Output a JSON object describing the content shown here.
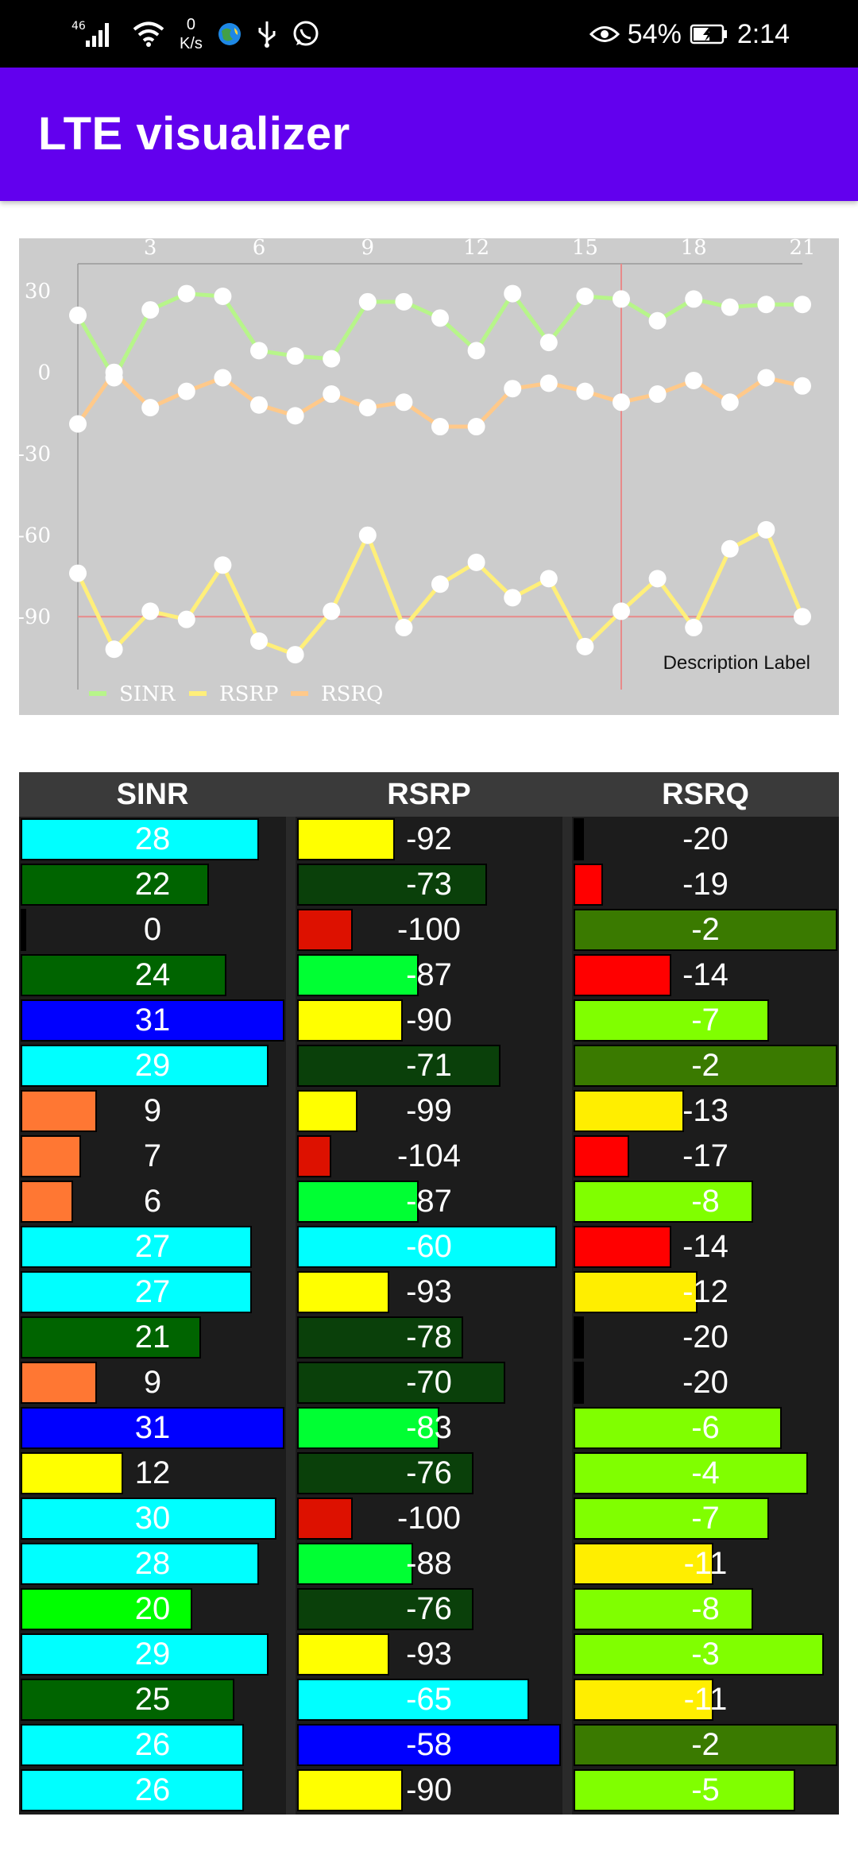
{
  "status_bar": {
    "network_type": "46",
    "net_speed_value": "0",
    "net_speed_unit": "K/s",
    "battery": "54%",
    "time": "2:14",
    "icons": [
      "signal-icon",
      "wifi-icon",
      "app-globe-icon",
      "usb-icon",
      "whatsapp-icon",
      "eye-comfort-icon",
      "battery-charging-icon"
    ]
  },
  "app_bar": {
    "title": "LTE visualizer"
  },
  "chart_data": {
    "type": "line",
    "x": [
      1,
      2,
      3,
      4,
      5,
      6,
      7,
      8,
      9,
      10,
      11,
      12,
      13,
      14,
      15,
      16,
      17,
      18,
      19,
      20,
      21
    ],
    "x_ticks": [
      "3",
      "6",
      "9",
      "12",
      "15",
      "18",
      "21"
    ],
    "y_ticks": [
      "30",
      "0",
      "-30",
      "-60",
      "-90"
    ],
    "ylim": [
      -111,
      40
    ],
    "series": [
      {
        "name": "SINR",
        "color": "#b7f58a",
        "values": [
          21,
          -2,
          23,
          29,
          28,
          8,
          6,
          5,
          26,
          26,
          20,
          8,
          29,
          11,
          28,
          27,
          19,
          27,
          24,
          25,
          25
        ]
      },
      {
        "name": "RSRP",
        "color": "#ffef7a",
        "values": [
          -74,
          -102,
          -88,
          -91,
          -71,
          -99,
          -104,
          -88,
          -60,
          -94,
          -78,
          -70,
          -83,
          -76,
          -101,
          -88,
          -76,
          -94,
          -65,
          -58,
          -90
        ]
      },
      {
        "name": "RSRQ",
        "color": "#ffc98a",
        "values": [
          -19,
          0,
          -13,
          -7,
          -2,
          -12,
          -16,
          -8,
          -13,
          -11,
          -20,
          -20,
          -6,
          -4,
          -7,
          -11,
          -8,
          -3,
          -11,
          -2,
          -5
        ]
      }
    ],
    "reference_lines": {
      "x": 16,
      "y": -90,
      "color": "#e88a8a"
    },
    "description_label": "Description Label",
    "grid": false,
    "legend_position": "bottom-left"
  },
  "table": {
    "headers": [
      "SINR",
      "RSRP",
      "RSRQ"
    ],
    "columns": [
      {
        "name": "sinr",
        "cells": [
          {
            "v": "28",
            "f": 0.905,
            "c": "#00ffff"
          },
          {
            "v": "22",
            "f": 0.715,
            "c": "#006400"
          },
          {
            "v": "0",
            "f": 0.02,
            "c": "#000000"
          },
          {
            "v": "24",
            "f": 0.78,
            "c": "#006400"
          },
          {
            "v": "31",
            "f": 1.0,
            "c": "#0000ff"
          },
          {
            "v": "29",
            "f": 0.94,
            "c": "#00ffff"
          },
          {
            "v": "9",
            "f": 0.29,
            "c": "#ff7733"
          },
          {
            "v": "7",
            "f": 0.23,
            "c": "#ff7733"
          },
          {
            "v": "6",
            "f": 0.2,
            "c": "#ff7733"
          },
          {
            "v": "27",
            "f": 0.875,
            "c": "#00ffff"
          },
          {
            "v": "27",
            "f": 0.875,
            "c": "#00ffff"
          },
          {
            "v": "21",
            "f": 0.685,
            "c": "#006400"
          },
          {
            "v": "9",
            "f": 0.29,
            "c": "#ff7733"
          },
          {
            "v": "31",
            "f": 1.0,
            "c": "#0000ff"
          },
          {
            "v": "12",
            "f": 0.39,
            "c": "#ffff00"
          },
          {
            "v": "30",
            "f": 0.97,
            "c": "#00ffff"
          },
          {
            "v": "28",
            "f": 0.905,
            "c": "#00ffff"
          },
          {
            "v": "20",
            "f": 0.65,
            "c": "#00ff00"
          },
          {
            "v": "29",
            "f": 0.94,
            "c": "#00ffff"
          },
          {
            "v": "25",
            "f": 0.81,
            "c": "#006400"
          },
          {
            "v": "26",
            "f": 0.845,
            "c": "#00ffff"
          },
          {
            "v": "26",
            "f": 0.845,
            "c": "#00ffff"
          }
        ]
      },
      {
        "name": "rsrp",
        "cells": [
          {
            "v": "-92",
            "f": 0.37,
            "c": "#ffff00"
          },
          {
            "v": "-73",
            "f": 0.72,
            "c": "#0a400a"
          },
          {
            "v": "-100",
            "f": 0.21,
            "c": "#dd1100"
          },
          {
            "v": "-87",
            "f": 0.46,
            "c": "#00ff33"
          },
          {
            "v": "-90",
            "f": 0.4,
            "c": "#ffff00"
          },
          {
            "v": "-71",
            "f": 0.77,
            "c": "#0a400a"
          },
          {
            "v": "-99",
            "f": 0.23,
            "c": "#ffff00"
          },
          {
            "v": "-104",
            "f": 0.13,
            "c": "#dd1100"
          },
          {
            "v": "-87",
            "f": 0.46,
            "c": "#00ff33"
          },
          {
            "v": "-60",
            "f": 0.985,
            "c": "#00ffff"
          },
          {
            "v": "-93",
            "f": 0.35,
            "c": "#ffff00"
          },
          {
            "v": "-78",
            "f": 0.63,
            "c": "#0a400a"
          },
          {
            "v": "-70",
            "f": 0.79,
            "c": "#0a400a"
          },
          {
            "v": "-83",
            "f": 0.54,
            "c": "#00ff33"
          },
          {
            "v": "-76",
            "f": 0.67,
            "c": "#0a400a"
          },
          {
            "v": "-100",
            "f": 0.21,
            "c": "#dd1100"
          },
          {
            "v": "-88",
            "f": 0.44,
            "c": "#00ff33"
          },
          {
            "v": "-76",
            "f": 0.67,
            "c": "#0a400a"
          },
          {
            "v": "-93",
            "f": 0.35,
            "c": "#ffff00"
          },
          {
            "v": "-65",
            "f": 0.88,
            "c": "#00ffff"
          },
          {
            "v": "-58",
            "f": 1.0,
            "c": "#0000ff"
          },
          {
            "v": "-90",
            "f": 0.4,
            "c": "#ffff00"
          }
        ]
      },
      {
        "name": "rsrq",
        "cells": [
          {
            "v": "-20",
            "f": 0.04,
            "c": "#000000"
          },
          {
            "v": "-19",
            "f": 0.11,
            "c": "#ff0000"
          },
          {
            "v": "-2",
            "f": 1.0,
            "c": "#3a7a00"
          },
          {
            "v": "-14",
            "f": 0.37,
            "c": "#ff0000"
          },
          {
            "v": "-7",
            "f": 0.74,
            "c": "#80ff00"
          },
          {
            "v": "-2",
            "f": 1.0,
            "c": "#3a7a00"
          },
          {
            "v": "-13",
            "f": 0.42,
            "c": "#ffee00"
          },
          {
            "v": "-17",
            "f": 0.21,
            "c": "#ff0000"
          },
          {
            "v": "-8",
            "f": 0.68,
            "c": "#80ff00"
          },
          {
            "v": "-14",
            "f": 0.37,
            "c": "#ff0000"
          },
          {
            "v": "-12",
            "f": 0.47,
            "c": "#ffee00"
          },
          {
            "v": "-20",
            "f": 0.04,
            "c": "#000000"
          },
          {
            "v": "-20",
            "f": 0.04,
            "c": "#000000"
          },
          {
            "v": "-6",
            "f": 0.79,
            "c": "#80ff00"
          },
          {
            "v": "-4",
            "f": 0.89,
            "c": "#80ff00"
          },
          {
            "v": "-7",
            "f": 0.74,
            "c": "#80ff00"
          },
          {
            "v": "-11",
            "f": 0.53,
            "c": "#ffee00"
          },
          {
            "v": "-8",
            "f": 0.68,
            "c": "#80ff00"
          },
          {
            "v": "-3",
            "f": 0.95,
            "c": "#80ff00"
          },
          {
            "v": "-11",
            "f": 0.53,
            "c": "#ffee00"
          },
          {
            "v": "-2",
            "f": 1.0,
            "c": "#3a7a00"
          },
          {
            "v": "-5",
            "f": 0.84,
            "c": "#80ff00"
          }
        ]
      }
    ]
  }
}
